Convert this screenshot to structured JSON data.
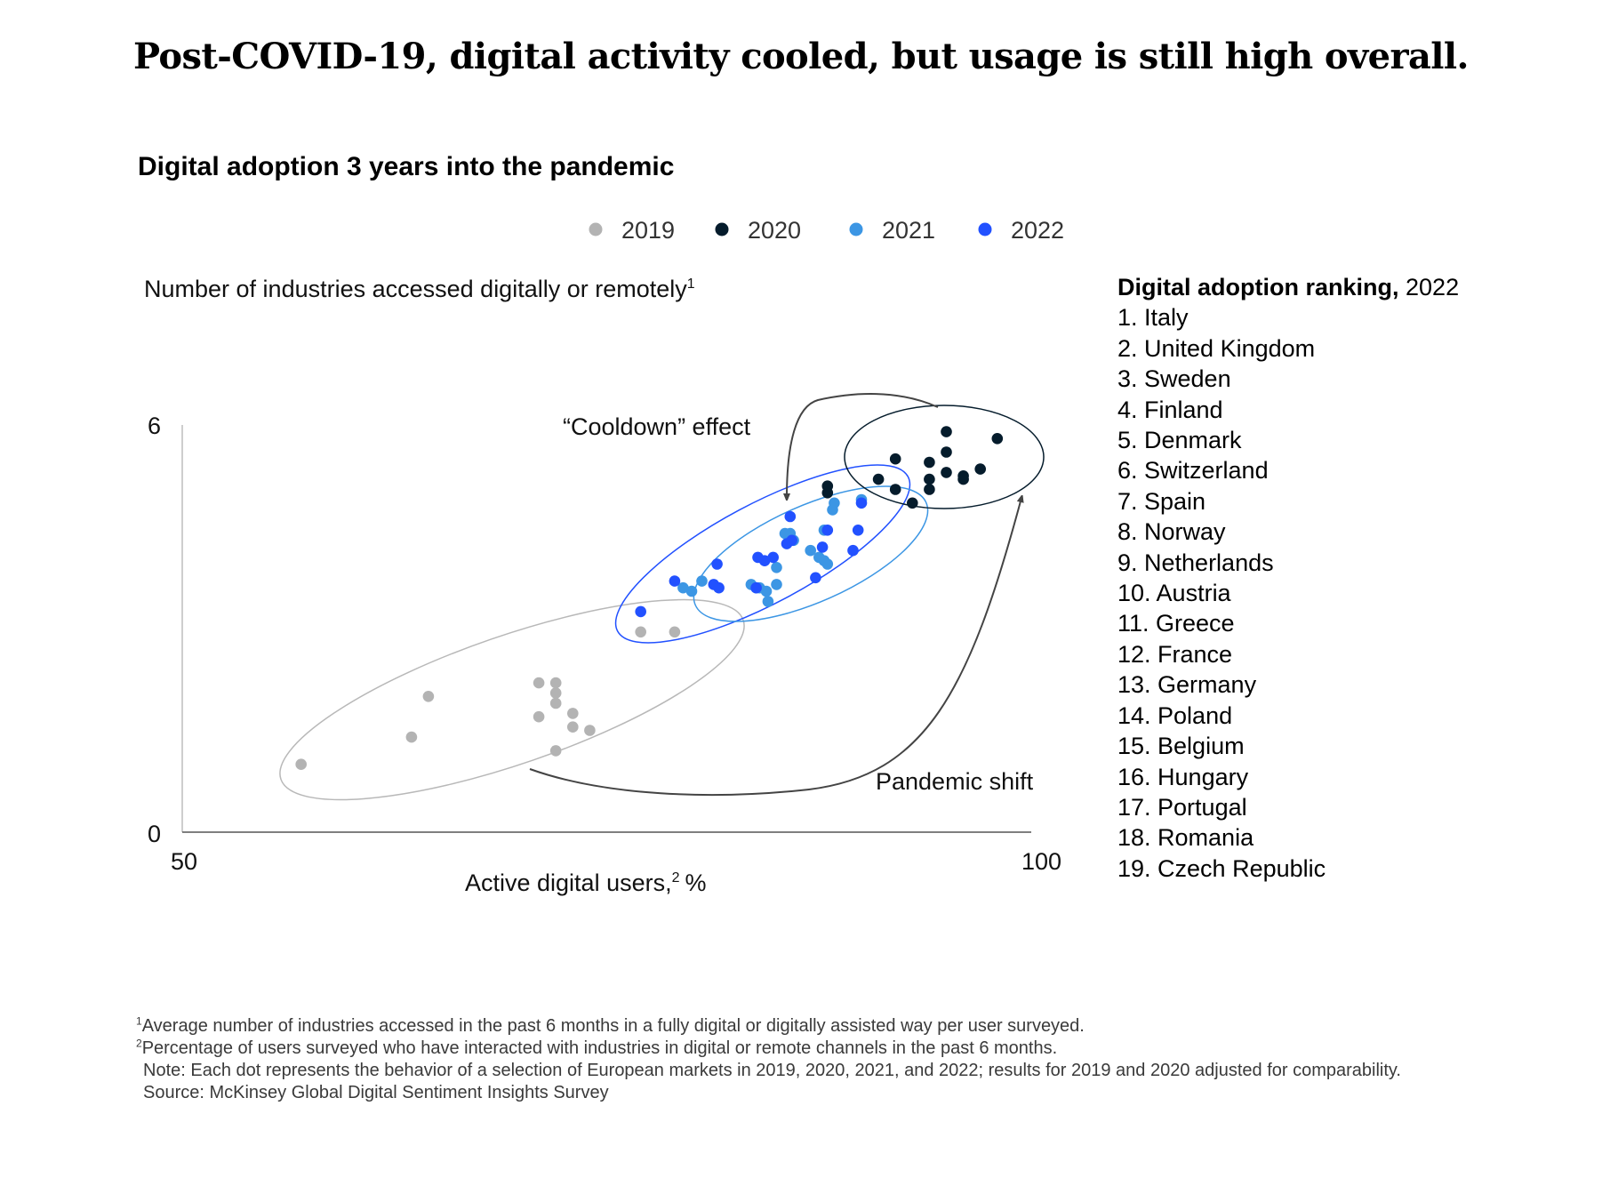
{
  "headline": "Post-COVID-19, digital activity cooled, but usage is still high overall.",
  "subtitle": "Digital adoption 3 years into the pandemic",
  "legend": [
    {
      "label": "2019",
      "color": "#b3b3b3"
    },
    {
      "label": "2020",
      "color": "#051c2c"
    },
    {
      "label": "2021",
      "color": "#3c96e4"
    },
    {
      "label": "2022",
      "color": "#2251ff"
    }
  ],
  "chart_data": {
    "type": "scatter",
    "title": "Digital adoption 3 years into the pandemic",
    "ylabel": "Number of industries accessed digitally or remotely",
    "ylabel_sup": "1",
    "xlabel": "Active digital users,",
    "xlabel_sup": "2",
    "xlabel_unit": "%",
    "xlim": [
      50,
      100
    ],
    "ylim": [
      0,
      6
    ],
    "x_ticks": [
      "50",
      "100"
    ],
    "y_ticks": [
      "0",
      "6"
    ],
    "grid": false,
    "legend_position": "top-center",
    "annotations": [
      "“Cooldown” effect",
      "Pandemic shift"
    ],
    "series": [
      {
        "name": "2019",
        "color": "#b3b3b3",
        "points": [
          [
            57.0,
            1.0
          ],
          [
            63.5,
            1.4
          ],
          [
            64.5,
            2.0
          ],
          [
            71.0,
            1.7
          ],
          [
            71.0,
            2.2
          ],
          [
            72.0,
            2.2
          ],
          [
            72.0,
            2.05
          ],
          [
            72.0,
            1.9
          ],
          [
            73.0,
            1.75
          ],
          [
            73.0,
            1.55
          ],
          [
            74.0,
            1.5
          ],
          [
            72.0,
            1.2
          ],
          [
            77.0,
            2.95
          ],
          [
            79.0,
            2.95
          ]
        ]
      },
      {
        "name": "2020",
        "color": "#051c2c",
        "points": [
          [
            88.0,
            5.0
          ],
          [
            88.0,
            5.1
          ],
          [
            91.0,
            5.2
          ],
          [
            92.0,
            5.05
          ],
          [
            92.0,
            5.5
          ],
          [
            93.0,
            4.85
          ],
          [
            94.0,
            5.05
          ],
          [
            94.0,
            5.2
          ],
          [
            94.0,
            5.45
          ],
          [
            95.0,
            5.3
          ],
          [
            95.0,
            5.6
          ],
          [
            95.0,
            5.9
          ],
          [
            96.0,
            5.2
          ],
          [
            96.0,
            5.25
          ],
          [
            97.0,
            5.35
          ],
          [
            98.0,
            5.8
          ]
        ]
      },
      {
        "name": "2021",
        "color": "#3c96e4",
        "points": [
          [
            79.5,
            3.6
          ],
          [
            80.0,
            3.55
          ],
          [
            80.6,
            3.7
          ],
          [
            83.5,
            3.65
          ],
          [
            83.8,
            3.6
          ],
          [
            84.0,
            3.6
          ],
          [
            84.4,
            3.55
          ],
          [
            84.5,
            3.4
          ],
          [
            85.0,
            3.9
          ],
          [
            85.0,
            3.65
          ],
          [
            85.5,
            4.4
          ],
          [
            85.8,
            4.4
          ],
          [
            86.0,
            4.3
          ],
          [
            87.0,
            4.15
          ],
          [
            87.5,
            4.05
          ],
          [
            87.8,
            4.45
          ],
          [
            87.8,
            4.0
          ],
          [
            88.0,
            3.95
          ],
          [
            88.3,
            4.75
          ],
          [
            88.4,
            4.85
          ],
          [
            90.0,
            4.9
          ]
        ]
      },
      {
        "name": "2022",
        "color": "#2251ff",
        "points": [
          [
            77.0,
            3.25
          ],
          [
            79.0,
            3.7
          ],
          [
            81.3,
            3.65
          ],
          [
            81.5,
            3.95
          ],
          [
            81.6,
            3.6
          ],
          [
            83.8,
            3.6
          ],
          [
            83.9,
            4.05
          ],
          [
            84.3,
            4.0
          ],
          [
            84.8,
            4.05
          ],
          [
            85.6,
            4.25
          ],
          [
            85.8,
            4.65
          ],
          [
            85.9,
            4.3
          ],
          [
            87.3,
            3.75
          ],
          [
            87.7,
            4.2
          ],
          [
            88.0,
            4.45
          ],
          [
            89.5,
            4.15
          ],
          [
            89.8,
            4.45
          ],
          [
            90.0,
            4.85
          ]
        ]
      }
    ]
  },
  "ranking": {
    "title_bold": "Digital adoption ranking,",
    "title_year": "2022",
    "items": [
      "1. Italy",
      "2. United Kingdom",
      "3. Sweden",
      "4. Finland",
      "5. Denmark",
      "6. Switzerland",
      "7. Spain",
      "8. Norway",
      "9. Netherlands",
      "10. Austria",
      "11. Greece",
      "12. France",
      "13. Germany",
      "14. Poland",
      "15. Belgium",
      "16. Hungary",
      "17. Portugal",
      "18. Romania",
      "19. Czech Republic"
    ]
  },
  "footnotes": {
    "note1_sup": "1",
    "note1": "Average number of industries accessed in the past 6 months in a fully digital or digitally assisted way per user surveyed.",
    "note2_sup": "2",
    "note2": "Percentage of users surveyed who have interacted with industries in digital or remote channels in the past 6 months.",
    "note": "Note: Each dot represents the behavior of a selection of European markets in 2019, 2020, 2021, and 2022; results for 2019 and 2020 adjusted for comparability.",
    "source": "Source: McKinsey Global Digital Sentiment Insights Survey"
  }
}
